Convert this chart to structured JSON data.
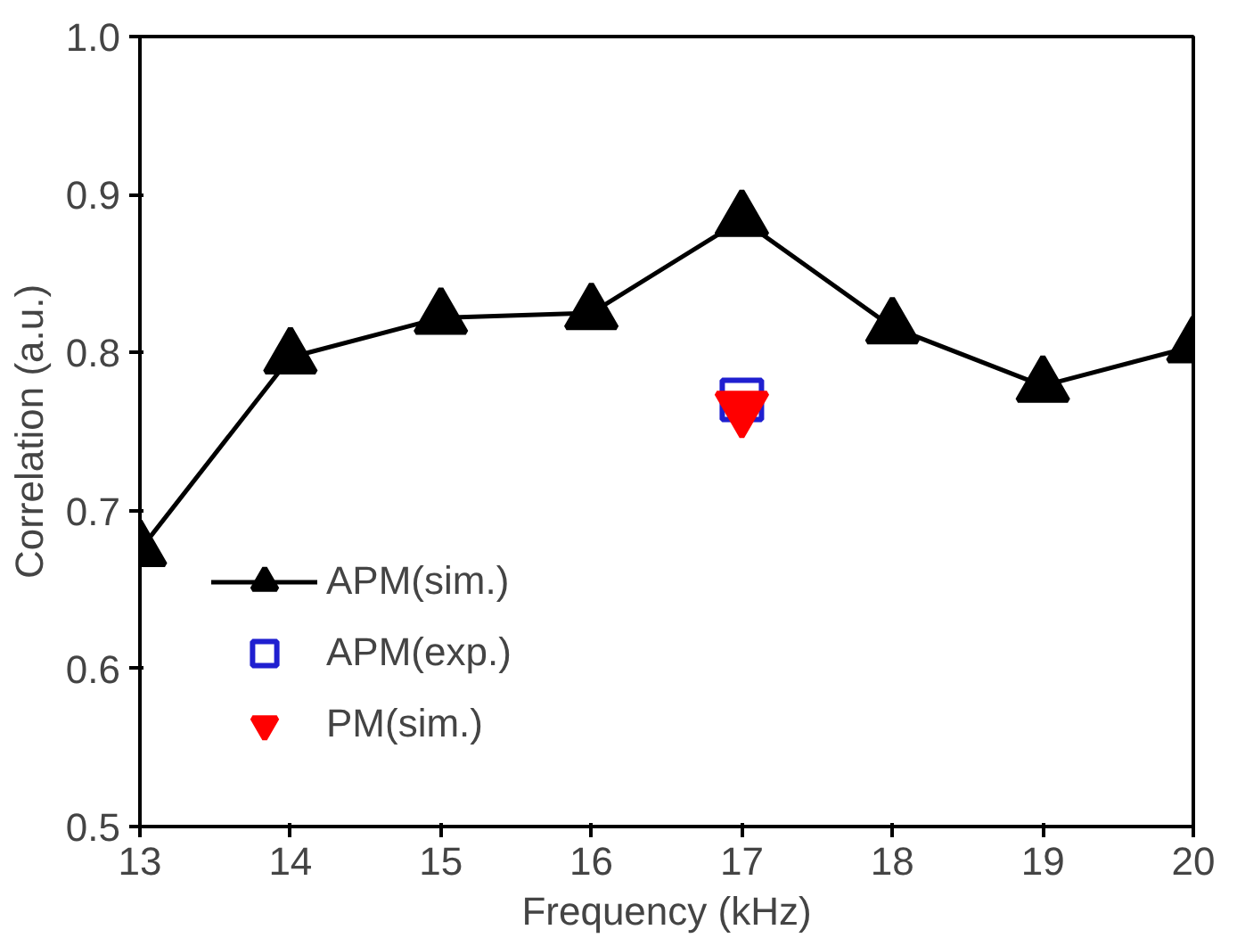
{
  "chart_data": {
    "type": "line",
    "xlabel": "Frequency (kHz)",
    "ylabel": "Correlation (a.u.)",
    "x": [
      13,
      14,
      15,
      16,
      17,
      18,
      19,
      20
    ],
    "series": [
      {
        "name": "APM(sim.)",
        "color": "#000000",
        "marker": "triangle",
        "values": [
          0.675,
          0.797,
          0.822,
          0.825,
          0.884,
          0.816,
          0.779,
          0.804
        ]
      },
      {
        "name": "APM(exp.)",
        "color": "#1f1fd0",
        "type": "scatter",
        "marker": "square",
        "x": [
          17
        ],
        "values": [
          0.77
        ]
      },
      {
        "name": "PM(sim.)",
        "color": "#ff0000",
        "type": "scatter",
        "marker": "triangle",
        "x": [
          17
        ],
        "values": [
          0.765
        ]
      }
    ],
    "xlim": [
      13,
      20
    ],
    "ylim": [
      0.5,
      1.0
    ],
    "xticks": [
      13,
      14,
      15,
      16,
      17,
      18,
      19,
      20
    ],
    "yticks": [
      {
        "value": 0.5,
        "label": "0.5"
      },
      {
        "value": 0.6,
        "label": "0.6"
      },
      {
        "value": 0.7,
        "label": "0.7"
      },
      {
        "value": 0.8,
        "label": "0.8"
      },
      {
        "value": 0.9,
        "label": "0.9"
      },
      {
        "value": 1.0,
        "label": "1.0"
      }
    ],
    "grid": false,
    "legend": "bottom left",
    "line_style": "solid"
  }
}
